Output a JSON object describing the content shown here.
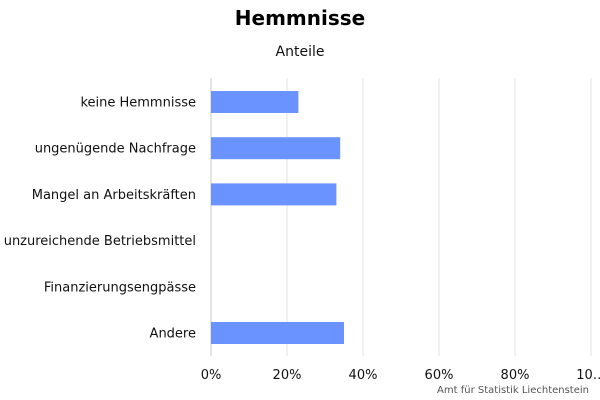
{
  "chart_data": {
    "type": "bar",
    "orientation": "horizontal",
    "title": "Hemmnisse",
    "subtitle": "Anteile",
    "categories": [
      "keine Hemmnisse",
      "ungenügende Nachfrage",
      "Mangel an Arbeitskräften",
      "unzureichende Betriebsmittel",
      "Finanzierungsengpässe",
      "Andere"
    ],
    "values": [
      23,
      34,
      33,
      0,
      0,
      35
    ],
    "xlim": [
      0,
      100
    ],
    "x_ticks": [
      "0%",
      "20%",
      "40%",
      "60%",
      "80%",
      "10…"
    ],
    "x_tick_values": [
      0,
      20,
      40,
      60,
      80,
      100
    ],
    "grid": true,
    "bar_color": "#6b93ff",
    "credit": "Amt für Statistik Liechtenstein"
  }
}
